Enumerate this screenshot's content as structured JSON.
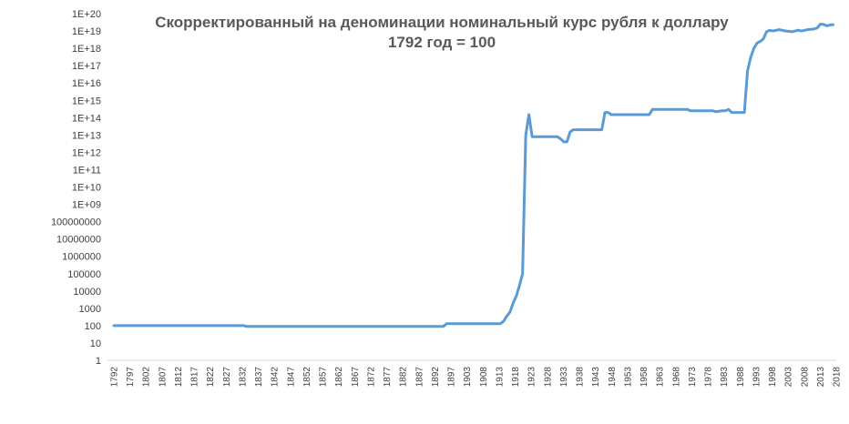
{
  "chart_data": {
    "type": "line",
    "title_line1": "Скорректированный на деноминации номинальный курс рубля к доллару",
    "title_line2": "1792 год = 100",
    "y_scale": "log10",
    "ylim": [
      1,
      1e+20
    ],
    "y_tick_labels": [
      "1",
      "10",
      "100",
      "1000",
      "10000",
      "100000",
      "1000000",
      "10000000",
      "100000000",
      "1E+09",
      "1E+10",
      "1E+11",
      "1E+12",
      "1E+13",
      "1E+14",
      "1E+15",
      "1E+16",
      "1E+17",
      "1E+18",
      "1E+19",
      "1E+20"
    ],
    "x_range": [
      1792,
      2020
    ],
    "x_tick_labels": [
      "1792",
      "1797",
      "1802",
      "1807",
      "1812",
      "1817",
      "1822",
      "1827",
      "1832",
      "1837",
      "1842",
      "1847",
      "1852",
      "1857",
      "1862",
      "1867",
      "1872",
      "1877",
      "1882",
      "1887",
      "1892",
      "1897",
      "1903",
      "1908",
      "1913",
      "1918",
      "1923",
      "1928",
      "1933",
      "1938",
      "1943",
      "1948",
      "1953",
      "1958",
      "1963",
      "1968",
      "1973",
      "1978",
      "1983",
      "1988",
      "1993",
      "1998",
      "2003",
      "2008",
      "2013",
      "2018"
    ],
    "grid": false,
    "legend": "none",
    "line_color": "#5B9BD5",
    "series": [
      {
        "x": [
          1792,
          1833,
          1834,
          1896,
          1897,
          1914,
          1915,
          1916,
          1917,
          1918,
          1919,
          1920,
          1921,
          1922,
          1923,
          1924,
          1932,
          1933,
          1934,
          1935,
          1936,
          1937,
          1946,
          1947,
          1948,
          1949,
          1950,
          1961,
          1962,
          1973,
          1974,
          1981,
          1982,
          1984,
          1985,
          1986,
          1987,
          1991,
          1992,
          1993,
          1994,
          1995,
          1996,
          1997,
          1998,
          1999,
          2000,
          2002,
          2004,
          2006,
          2008,
          2009,
          2011,
          2013,
          2014,
          2015,
          2016,
          2017,
          2018,
          2019
        ],
        "y": [
          100,
          100,
          90,
          90,
          130,
          130,
          180,
          350,
          600,
          2000,
          5000,
          20000,
          100000,
          10000000000000.0,
          150000000000000.0,
          8000000000000.0,
          8000000000000.0,
          6000000000000.0,
          4000000000000.0,
          4000000000000.0,
          15000000000000.0,
          20000000000000.0,
          20000000000000.0,
          200000000000000.0,
          200000000000000.0,
          150000000000000.0,
          150000000000000.0,
          150000000000000.0,
          300000000000000.0,
          300000000000000.0,
          250000000000000.0,
          250000000000000.0,
          220000000000000.0,
          250000000000000.0,
          250000000000000.0,
          300000000000000.0,
          200000000000000.0,
          200000000000000.0,
          5e+16,
          3e+17,
          1e+18,
          2e+18,
          2.5e+18,
          3.5e+18,
          9e+18,
          1.1e+19,
          1e+19,
          1.2e+19,
          1e+19,
          9e+18,
          1.1e+19,
          1e+19,
          1.2e+19,
          1.3e+19,
          1.5e+19,
          2.5e+19,
          2.4e+19,
          2e+19,
          2.2e+19,
          2.3e+19
        ]
      }
    ]
  }
}
